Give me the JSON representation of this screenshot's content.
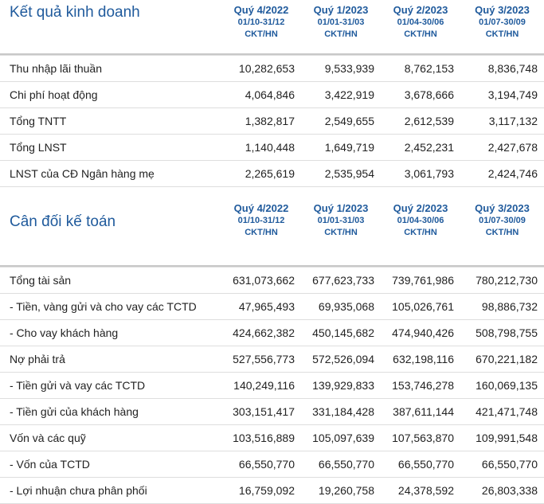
{
  "section1": {
    "title": "Kết quả kinh doanh",
    "columns": [
      {
        "quarter": "Quý 4/2022",
        "period": "01/10-31/12",
        "audit": "CKT/HN"
      },
      {
        "quarter": "Quý 1/2023",
        "period": "01/01-31/03",
        "audit": "CKT/HN"
      },
      {
        "quarter": "Quý 2/2023",
        "period": "01/04-30/06",
        "audit": "CKT/HN"
      },
      {
        "quarter": "Quý 3/2023",
        "period": "01/07-30/09",
        "audit": "CKT/HN"
      }
    ],
    "rows": [
      {
        "label": "Thu nhập lãi thuần",
        "values": [
          "10,282,653",
          "9,533,939",
          "8,762,153",
          "8,836,748"
        ]
      },
      {
        "label": "Chi phí hoạt động",
        "values": [
          "4,064,846",
          "3,422,919",
          "3,678,666",
          "3,194,749"
        ]
      },
      {
        "label": "Tổng TNTT",
        "values": [
          "1,382,817",
          "2,549,655",
          "2,612,539",
          "3,117,132"
        ]
      },
      {
        "label": "Tổng LNST",
        "values": [
          "1,140,448",
          "1,649,719",
          "2,452,231",
          "2,427,678"
        ]
      },
      {
        "label": "LNST của CĐ Ngân hàng mẹ",
        "values": [
          "2,265,619",
          "2,535,954",
          "3,061,793",
          "2,424,746"
        ]
      }
    ]
  },
  "section2": {
    "title": "Cân đối kế toán",
    "columns": [
      {
        "quarter": "Quý 4/2022",
        "period": "01/10-31/12",
        "audit": "CKT/HN"
      },
      {
        "quarter": "Quý 1/2023",
        "period": "01/01-31/03",
        "audit": "CKT/HN"
      },
      {
        "quarter": "Quý 2/2023",
        "period": "01/04-30/06",
        "audit": "CKT/HN"
      },
      {
        "quarter": "Quý 3/2023",
        "period": "01/07-30/09",
        "audit": "CKT/HN"
      }
    ],
    "rows": [
      {
        "label": "Tổng tài sản",
        "values": [
          "631,073,662",
          "677,623,733",
          "739,761,986",
          "780,212,730"
        ]
      },
      {
        "label": "- Tiền, vàng gửi và cho vay các TCTD",
        "values": [
          "47,965,493",
          "69,935,068",
          "105,026,761",
          "98,886,732"
        ]
      },
      {
        "label": "- Cho vay khách hàng",
        "values": [
          "424,662,382",
          "450,145,682",
          "474,940,426",
          "508,798,755"
        ]
      },
      {
        "label": "Nợ phải trả",
        "values": [
          "527,556,773",
          "572,526,094",
          "632,198,116",
          "670,221,182"
        ]
      },
      {
        "label": "- Tiền gửi và vay các TCTD",
        "values": [
          "140,249,116",
          "139,929,833",
          "153,746,278",
          "160,069,135"
        ]
      },
      {
        "label": "- Tiền gửi của khách hàng",
        "values": [
          "303,151,417",
          "331,184,428",
          "387,611,144",
          "421,471,748"
        ]
      },
      {
        "label": "Vốn và các quỹ",
        "values": [
          "103,516,889",
          "105,097,639",
          "107,563,870",
          "109,991,548"
        ]
      },
      {
        "label": "- Vốn của TCTD",
        "values": [
          "66,550,770",
          "66,550,770",
          "66,550,770",
          "66,550,770"
        ]
      },
      {
        "label": "- Lợi nhuận chưa phân phối",
        "values": [
          "16,759,092",
          "19,260,758",
          "24,378,592",
          "26,803,338"
        ]
      }
    ]
  }
}
